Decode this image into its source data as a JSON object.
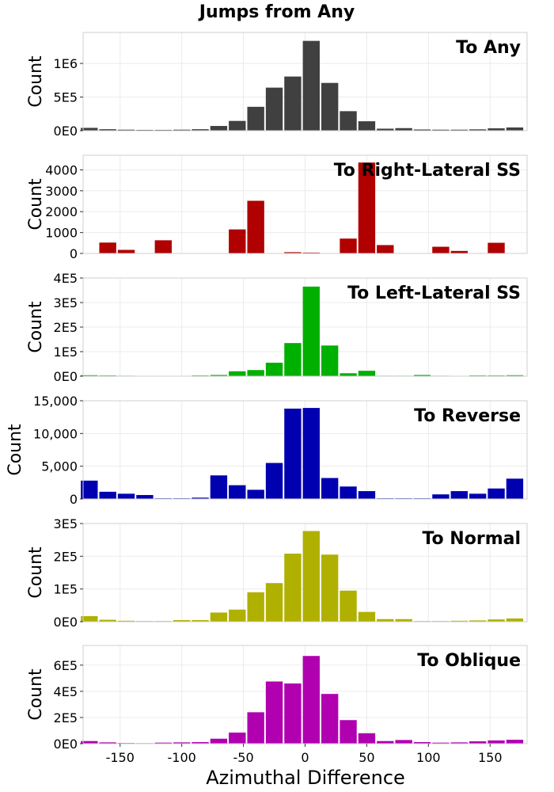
{
  "figure": {
    "title": "Jumps from Any",
    "xlabel": "Azimuthal Difference",
    "x_ticks": [
      "-150",
      "-100",
      "-50",
      "0",
      "50",
      "100",
      "150"
    ]
  },
  "chart_data": [
    {
      "type": "bar",
      "title": "To Any",
      "ylabel": "Count",
      "color": "#404040",
      "xlim": [
        -180,
        180
      ],
      "ylim": [
        0,
        1460000
      ],
      "y_ticks": [
        {
          "value": 0,
          "label": "0E0"
        },
        {
          "value": 500000,
          "label": "5E5"
        },
        {
          "value": 1000000,
          "label": "1E6"
        }
      ],
      "x": [
        -175,
        -160,
        -145,
        -130,
        -115,
        -100,
        -85,
        -70,
        -55,
        -40,
        -25,
        -10,
        5,
        20,
        35,
        50,
        65,
        80,
        95,
        110,
        125,
        140,
        155,
        170
      ],
      "values": [
        42000,
        22000,
        15000,
        12000,
        12000,
        15000,
        22000,
        70000,
        145000,
        355000,
        640000,
        805000,
        1335000,
        710000,
        290000,
        140000,
        30000,
        38000,
        18000,
        15000,
        15000,
        20000,
        35000,
        48000
      ]
    },
    {
      "type": "bar",
      "title": "To Right-Lateral SS",
      "ylabel": "Count",
      "color": "#b00000",
      "xlim": [
        -180,
        180
      ],
      "ylim": [
        0,
        4700
      ],
      "y_ticks": [
        {
          "value": 0,
          "label": "0"
        },
        {
          "value": 1000,
          "label": "1000"
        },
        {
          "value": 2000,
          "label": "2000"
        },
        {
          "value": 3000,
          "label": "3000"
        },
        {
          "value": 4000,
          "label": "4000"
        }
      ],
      "x": [
        -175,
        -160,
        -145,
        -130,
        -115,
        -100,
        -85,
        -70,
        -55,
        -40,
        -25,
        -10,
        5,
        20,
        35,
        50,
        65,
        80,
        95,
        110,
        125,
        140,
        155,
        170
      ],
      "values": [
        0,
        520,
        170,
        0,
        630,
        0,
        0,
        0,
        1150,
        2520,
        0,
        60,
        40,
        0,
        710,
        4350,
        400,
        0,
        0,
        320,
        120,
        0,
        510,
        0
      ]
    },
    {
      "type": "bar",
      "title": "To Left-Lateral SS",
      "ylabel": "Count",
      "color": "#00b000",
      "xlim": [
        -180,
        180
      ],
      "ylim": [
        0,
        400000
      ],
      "y_ticks": [
        {
          "value": 0,
          "label": "0E0"
        },
        {
          "value": 100000,
          "label": "1E5"
        },
        {
          "value": 200000,
          "label": "2E5"
        },
        {
          "value": 300000,
          "label": "3E5"
        },
        {
          "value": 400000,
          "label": "4E5"
        }
      ],
      "x": [
        -175,
        -160,
        -145,
        -130,
        -115,
        -100,
        -85,
        -70,
        -55,
        -40,
        -25,
        -10,
        5,
        20,
        35,
        50,
        65,
        80,
        95,
        110,
        125,
        140,
        155,
        170
      ],
      "values": [
        4000,
        3000,
        2000,
        1000,
        1000,
        1000,
        3000,
        5000,
        20000,
        25000,
        55000,
        135000,
        365000,
        125000,
        12000,
        22000,
        2000,
        2000,
        5000,
        2000,
        1000,
        3000,
        3000,
        4000
      ]
    },
    {
      "type": "bar",
      "title": "To Reverse",
      "ylabel": "Count",
      "color": "#0000b0",
      "xlim": [
        -180,
        180
      ],
      "ylim": [
        0,
        15000
      ],
      "y_ticks": [
        {
          "value": 0,
          "label": "0"
        },
        {
          "value": 5000,
          "label": "5,000"
        },
        {
          "value": 10000,
          "label": "10,000"
        },
        {
          "value": 15000,
          "label": "15,000"
        }
      ],
      "x": [
        -175,
        -160,
        -145,
        -130,
        -115,
        -100,
        -85,
        -70,
        -55,
        -40,
        -25,
        -10,
        5,
        20,
        35,
        50,
        65,
        80,
        95,
        110,
        125,
        140,
        155,
        170
      ],
      "values": [
        2800,
        1100,
        800,
        600,
        100,
        100,
        200,
        3600,
        2100,
        1400,
        5500,
        13800,
        13900,
        3200,
        1900,
        1200,
        100,
        100,
        100,
        700,
        1200,
        800,
        1600,
        3100
      ]
    },
    {
      "type": "bar",
      "title": "To Normal",
      "ylabel": "Count",
      "color": "#b0b000",
      "xlim": [
        -180,
        180
      ],
      "ylim": [
        0,
        300000
      ],
      "y_ticks": [
        {
          "value": 0,
          "label": "0E0"
        },
        {
          "value": 100000,
          "label": "1E5"
        },
        {
          "value": 200000,
          "label": "2E5"
        },
        {
          "value": 300000,
          "label": "3E5"
        }
      ],
      "x": [
        -175,
        -160,
        -145,
        -130,
        -115,
        -100,
        -85,
        -70,
        -55,
        -40,
        -25,
        -10,
        5,
        20,
        35,
        50,
        65,
        80,
        95,
        110,
        125,
        140,
        155,
        170
      ],
      "values": [
        17000,
        6000,
        3000,
        2000,
        2000,
        5000,
        5000,
        28000,
        37000,
        90000,
        118000,
        208000,
        277000,
        205000,
        95000,
        30000,
        8000,
        8000,
        2000,
        2000,
        3000,
        4000,
        7000,
        10000
      ]
    },
    {
      "type": "bar",
      "title": "To Oblique",
      "ylabel": "Count",
      "color": "#b000b0",
      "xlim": [
        -180,
        180
      ],
      "ylim": [
        0,
        750000
      ],
      "y_ticks": [
        {
          "value": 0,
          "label": "0E0"
        },
        {
          "value": 200000,
          "label": "2E5"
        },
        {
          "value": 400000,
          "label": "4E5"
        },
        {
          "value": 600000,
          "label": "6E5"
        }
      ],
      "x": [
        -175,
        -160,
        -145,
        -130,
        -115,
        -100,
        -85,
        -70,
        -55,
        -40,
        -25,
        -10,
        5,
        20,
        35,
        50,
        65,
        80,
        95,
        110,
        125,
        140,
        155,
        170
      ],
      "values": [
        20000,
        10000,
        5000,
        4000,
        8000,
        10000,
        12000,
        38000,
        85000,
        240000,
        475000,
        460000,
        670000,
        380000,
        180000,
        80000,
        20000,
        28000,
        12000,
        8000,
        10000,
        18000,
        25000,
        30000
      ]
    }
  ]
}
